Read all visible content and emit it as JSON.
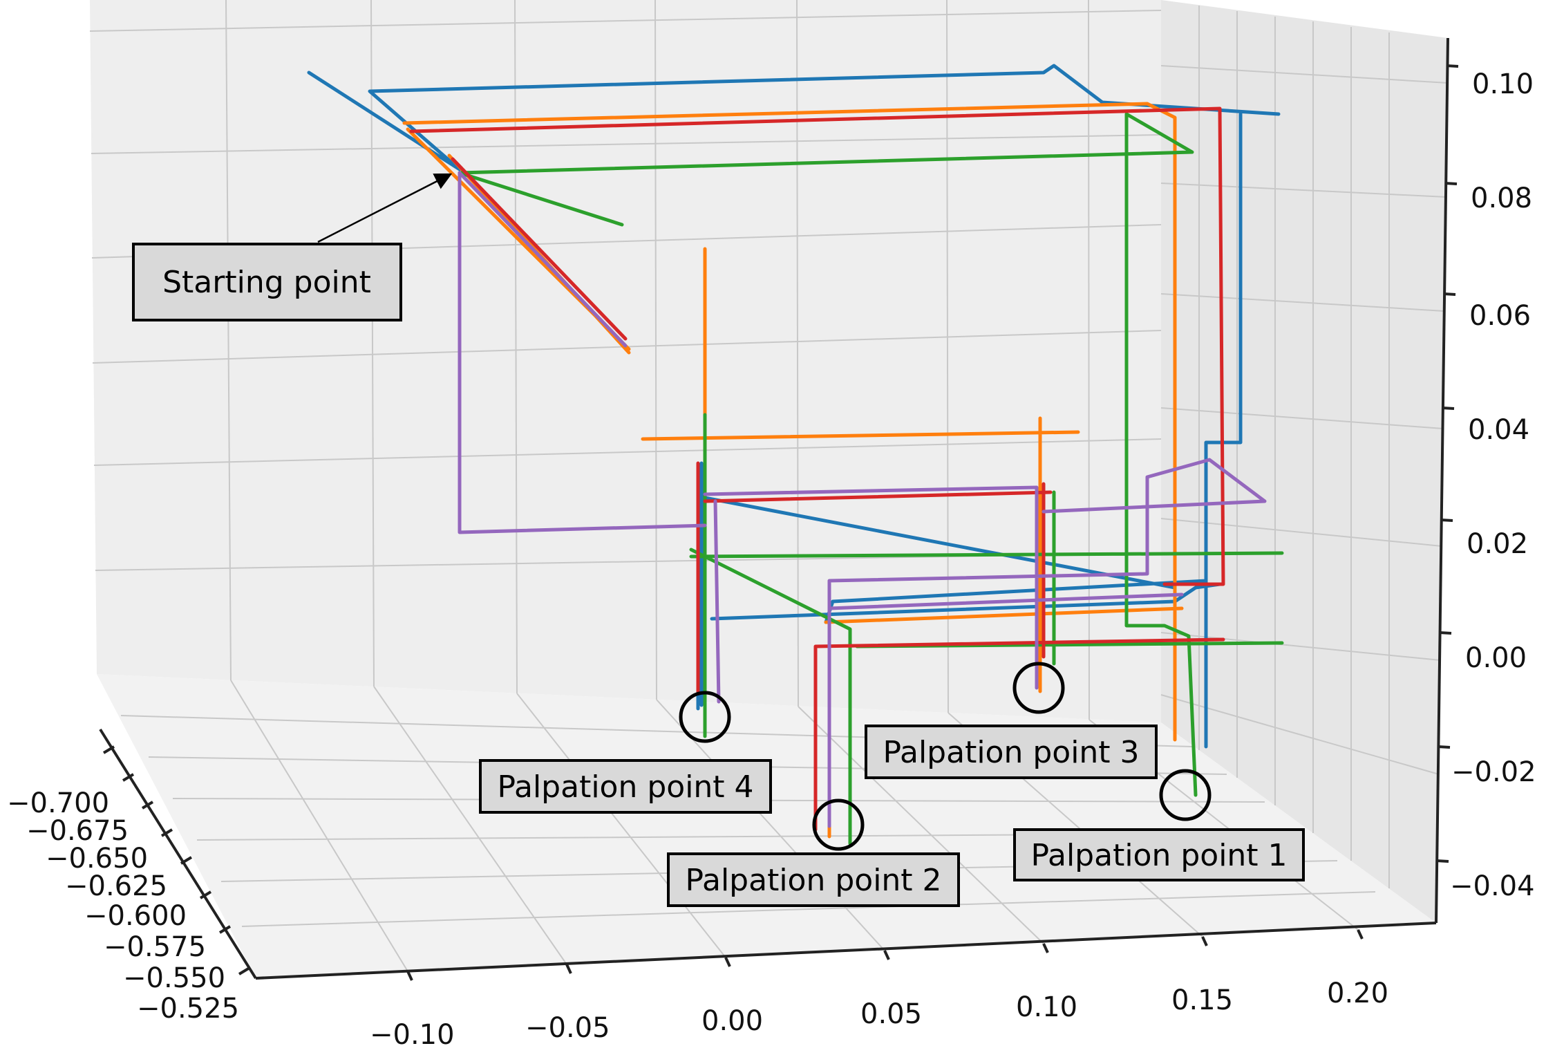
{
  "chart_data": {
    "type": "line",
    "title": "",
    "projection": "3d",
    "grid": true,
    "x_axis": {
      "ticks": [
        "−0.10",
        "−0.05",
        "0.00",
        "0.05",
        "0.10",
        "0.15",
        "0.20"
      ]
    },
    "y_axis": {
      "ticks": [
        "−0.700",
        "−0.675",
        "−0.650",
        "−0.625",
        "−0.600",
        "−0.575",
        "−0.550",
        "−0.525"
      ]
    },
    "z_axis": {
      "ticks": [
        "0.10",
        "0.08",
        "0.06",
        "0.04",
        "0.02",
        "0.00",
        "−0.02",
        "−0.04"
      ]
    },
    "series": [
      {
        "color": "#1f77b4"
      },
      {
        "color": "#ff7f0e"
      },
      {
        "color": "#2ca02c"
      },
      {
        "color": "#d62728"
      },
      {
        "color": "#9467bd"
      }
    ],
    "annotations": [
      {
        "id": "start",
        "text": "Starting point"
      },
      {
        "id": "p1",
        "text": "Palpation point 1"
      },
      {
        "id": "p2",
        "text": "Palpation point 2"
      },
      {
        "id": "p3",
        "text": "Palpation point 3"
      },
      {
        "id": "p4",
        "text": "Palpation point 4"
      }
    ]
  }
}
